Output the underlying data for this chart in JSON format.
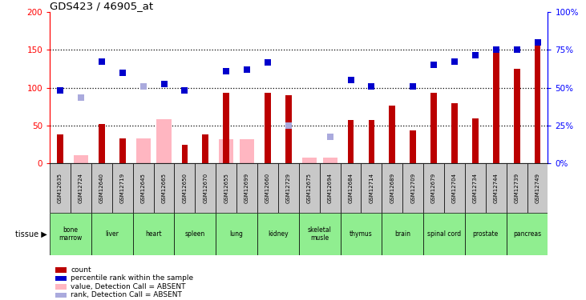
{
  "title": "GDS423 / 46905_at",
  "samples": [
    "GSM12635",
    "GSM12724",
    "GSM12640",
    "GSM12719",
    "GSM12645",
    "GSM12665",
    "GSM12650",
    "GSM12670",
    "GSM12655",
    "GSM12699",
    "GSM12660",
    "GSM12729",
    "GSM12675",
    "GSM12694",
    "GSM12684",
    "GSM12714",
    "GSM12689",
    "GSM12709",
    "GSM12679",
    "GSM12704",
    "GSM12734",
    "GSM12744",
    "GSM12739",
    "GSM12749"
  ],
  "red_values": [
    38,
    0,
    52,
    33,
    0,
    0,
    25,
    38,
    93,
    0,
    93,
    90,
    0,
    0,
    57,
    57,
    76,
    44,
    93,
    80,
    60,
    155,
    125,
    163
  ],
  "blue_values": [
    97,
    0,
    135,
    120,
    0,
    105,
    97,
    0,
    122,
    124,
    133,
    0,
    0,
    0,
    110,
    102,
    0,
    102,
    130,
    135,
    143,
    150,
    150,
    160
  ],
  "pink_values": [
    0,
    11,
    0,
    0,
    33,
    58,
    0,
    0,
    32,
    32,
    0,
    0,
    8,
    8,
    0,
    0,
    0,
    0,
    0,
    0,
    0,
    0,
    0,
    0
  ],
  "lpink_values": [
    0,
    87,
    0,
    0,
    102,
    0,
    0,
    0,
    0,
    0,
    0,
    50,
    0,
    35,
    0,
    0,
    0,
    0,
    0,
    0,
    0,
    0,
    0,
    0
  ],
  "tissues": [
    {
      "name": "bone\nmarrow",
      "start": 0,
      "end": 2
    },
    {
      "name": "liver",
      "start": 2,
      "end": 4
    },
    {
      "name": "heart",
      "start": 4,
      "end": 6
    },
    {
      "name": "spleen",
      "start": 6,
      "end": 8
    },
    {
      "name": "lung",
      "start": 8,
      "end": 10
    },
    {
      "name": "kidney",
      "start": 10,
      "end": 12
    },
    {
      "name": "skeletal\nmusle",
      "start": 12,
      "end": 14
    },
    {
      "name": "thymus",
      "start": 14,
      "end": 16
    },
    {
      "name": "brain",
      "start": 16,
      "end": 18
    },
    {
      "name": "spinal cord",
      "start": 18,
      "end": 20
    },
    {
      "name": "prostate",
      "start": 20,
      "end": 22
    },
    {
      "name": "pancreas",
      "start": 22,
      "end": 24
    }
  ],
  "bar_color": "#bb0000",
  "dot_color": "#0000cc",
  "pink_color": "#ffb6c1",
  "lpink_color": "#aaaadd",
  "sample_bg": "#c8c8c8",
  "tissue_bg": "#90ee90",
  "tissue_bg_dark": "#44cc44"
}
